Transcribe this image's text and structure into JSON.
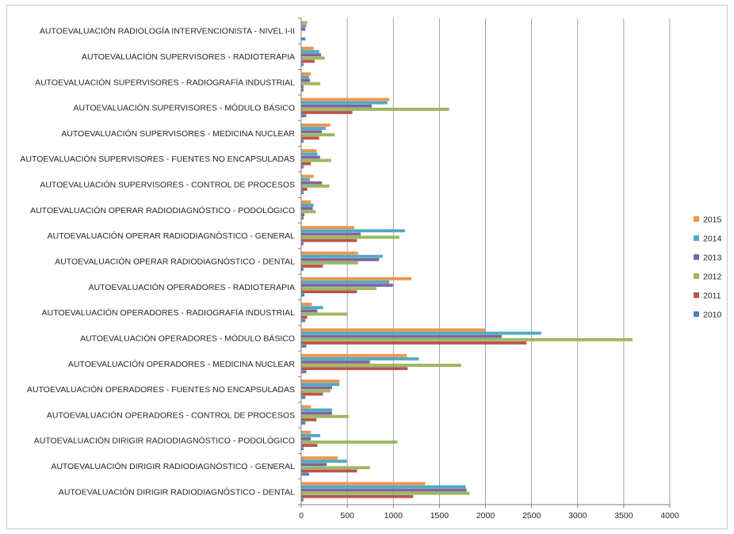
{
  "chart_data": {
    "type": "bar",
    "orientation": "horizontal",
    "categories": [
      "AUTOEVALUACIÓN RADIOLOGÍA INTERVENCIONISTA - NIVEL I-II",
      "AUTOEVALUACIÓN SUPERVISORES - RADIOTERAPIA",
      "AUTOEVALUACIÓN SUPERVISORES - RADIOGRAFÍA INDUSTRIAL",
      "AUTOEVALUACIÓN SUPERVISORES - MÓDULO BÁSICO",
      "AUTOEVALUACIÓN SUPERVISORES - MEDICINA NUCLEAR",
      "AUTOEVALUACIÓN SUPERVISORES - FUENTES NO ENCAPSULADAS",
      "AUTOEVALUACIÓN SUPERVISORES - CONTROL DE PROCESOS",
      "AUTOEVALUACIÓN OPERAR RADIODIAGNÓSTICO - PODOLÓGICO",
      "AUTOEVALUACIÓN OPERAR RADIODIAGNÓSTICO - GENERAL",
      "AUTOEVALUACIÓN OPERAR RADIODIAGNÓSTICO - DENTAL",
      "AUTOEVALUACIÓN OPERADORES - RADIOTERAPIA",
      "AUTOEVALUACIÓN OPERADORES - RADIOGRAFÍA INDUSTRIAL",
      "AUTOEVALUACIÓN OPERADORES - MÓDULO BÁSICO",
      "AUTOEVALUACIÓN OPERADORES - MEDICINA NUCLEAR",
      "AUTOEVALUACIÓN OPERADORES - FUENTES NO ENCAPSULADAS",
      "AUTOEVALUACIÓN OPERADORES - CONTROL DE PROCESOS",
      "AUTOEVALUACIÓN DIRIGIR RADIODIAGNÓSTICO - PODOLÓGICO",
      "AUTOEVALUACIÓN DIRIGIR RADIODIAGNÓSTICO - GENERAL",
      "AUTOEVALUACIÓN DIRIGIR RADIODIAGNÓSTICO - DENTAL"
    ],
    "series": [
      {
        "name": "2015",
        "color": "#f79646",
        "values": [
          60,
          130,
          100,
          950,
          310,
          160,
          130,
          100,
          570,
          610,
          1190,
          110,
          1990,
          1140,
          410,
          100,
          100,
          390,
          1340
        ]
      },
      {
        "name": "2014",
        "color": "#4bacc6",
        "values": [
          50,
          190,
          80,
          930,
          260,
          170,
          90,
          130,
          1120,
          880,
          950,
          230,
          2600,
          1270,
          410,
          330,
          200,
          490,
          1780
        ]
      },
      {
        "name": "2013",
        "color": "#8064a2",
        "values": [
          40,
          210,
          90,
          760,
          220,
          200,
          220,
          120,
          640,
          840,
          990,
          170,
          2170,
          740,
          330,
          330,
          100,
          270,
          1790
        ]
      },
      {
        "name": "2012",
        "color": "#9bbb59",
        "values": [
          0,
          250,
          200,
          1600,
          360,
          320,
          300,
          150,
          1060,
          610,
          810,
          490,
          3590,
          1730,
          310,
          510,
          1040,
          740,
          1820
        ]
      },
      {
        "name": "2011",
        "color": "#c0504d",
        "values": [
          0,
          140,
          20,
          550,
          190,
          100,
          60,
          30,
          600,
          230,
          600,
          60,
          2440,
          1150,
          230,
          160,
          170,
          600,
          1210
        ]
      },
      {
        "name": "2010",
        "color": "#4f81bd",
        "values": [
          40,
          20,
          20,
          50,
          20,
          20,
          20,
          20,
          20,
          20,
          30,
          40,
          50,
          50,
          40,
          40,
          20,
          80,
          20
        ]
      }
    ],
    "xlim": [
      0,
      4000
    ],
    "xticks": [
      "0",
      "500",
      "1000",
      "1500",
      "2000",
      "2500",
      "3000",
      "3500",
      "4000"
    ],
    "grid": true,
    "legend": {
      "placement": "right",
      "entries": [
        "2015",
        "2014",
        "2013",
        "2012",
        "2011",
        "2010"
      ]
    }
  }
}
